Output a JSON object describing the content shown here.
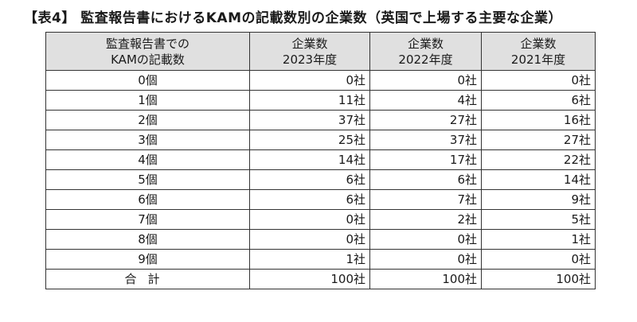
{
  "title": "【表4】 監査報告書におけるKAMの記載数別の企業数（英国で上場する主要な企業）",
  "table": {
    "header": {
      "col0": {
        "line1": "監査報告書での",
        "line2": "KAMの記載数"
      },
      "col1": {
        "line1": "企業数",
        "line2": "2023年度"
      },
      "col2": {
        "line1": "企業数",
        "line2": "2022年度"
      },
      "col3": {
        "line1": "企業数",
        "line2": "2021年度"
      }
    },
    "rows": [
      {
        "label": "0個",
        "y2023": "0社",
        "y2022": "0社",
        "y2021": "0社"
      },
      {
        "label": "1個",
        "y2023": "11社",
        "y2022": "4社",
        "y2021": "6社"
      },
      {
        "label": "2個",
        "y2023": "37社",
        "y2022": "27社",
        "y2021": "16社"
      },
      {
        "label": "3個",
        "y2023": "25社",
        "y2022": "37社",
        "y2021": "27社"
      },
      {
        "label": "4個",
        "y2023": "14社",
        "y2022": "17社",
        "y2021": "22社"
      },
      {
        "label": "5個",
        "y2023": "6社",
        "y2022": "6社",
        "y2021": "14社"
      },
      {
        "label": "6個",
        "y2023": "6社",
        "y2022": "7社",
        "y2021": "9社"
      },
      {
        "label": "7個",
        "y2023": "0社",
        "y2022": "2社",
        "y2021": "5社"
      },
      {
        "label": "8個",
        "y2023": "0社",
        "y2022": "0社",
        "y2021": "1社"
      },
      {
        "label": "9個",
        "y2023": "1社",
        "y2022": "0社",
        "y2021": "0社"
      },
      {
        "label": "合計",
        "y2023": "100社",
        "y2022": "100社",
        "y2021": "100社"
      }
    ]
  },
  "colors": {
    "header_bg": "#e0e0e0",
    "border": "#333333",
    "text": "#1a1a1a"
  }
}
